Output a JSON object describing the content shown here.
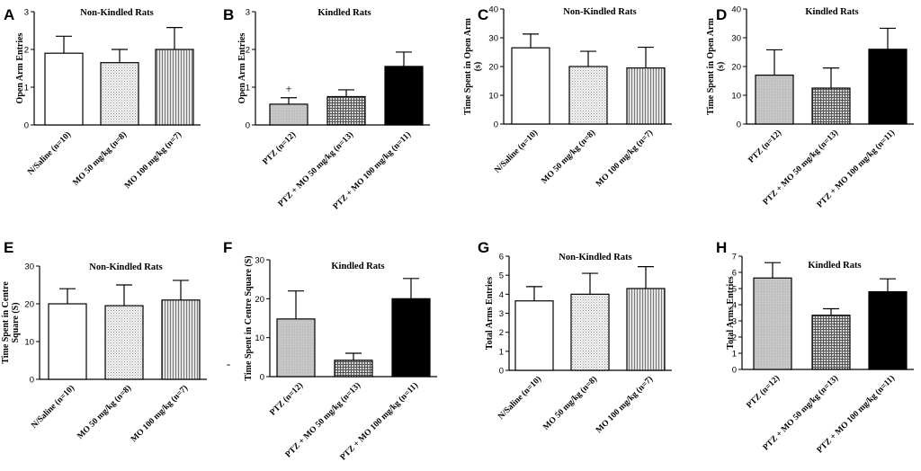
{
  "chart_data": [
    {
      "panel": "A",
      "type": "bar",
      "title": "Non-Kindled Rats",
      "ylabel": [
        "Open Arm Entries"
      ],
      "ylim": [
        0,
        3
      ],
      "yticks": [
        0,
        1,
        2,
        3
      ],
      "categories": [
        "N/Saline (n=10)",
        "MO 50 mg/kg (n=8)",
        "MO 100 mg/kg (n=7)"
      ],
      "values": [
        1.9,
        1.65,
        2.0
      ],
      "errors": [
        0.45,
        0.35,
        0.58
      ],
      "patterns": [
        "white",
        "dots",
        "vlines"
      ],
      "annotations": []
    },
    {
      "panel": "B",
      "type": "bar",
      "title": "Kindled Rats",
      "ylabel": [
        "Open Arm Entries"
      ],
      "ylim": [
        0,
        3
      ],
      "yticks": [
        0,
        1,
        2,
        3
      ],
      "categories": [
        "PTZ (n=12)",
        "PTZ + MO 50 mg/kg (n=13)",
        "PTZ + MO 100 mg/kg (n=11)"
      ],
      "values": [
        0.55,
        0.75,
        1.55
      ],
      "errors": [
        0.17,
        0.18,
        0.38
      ],
      "patterns": [
        "gray",
        "grid",
        "black"
      ],
      "annotations": [
        {
          "text": "+",
          "bar": 0
        }
      ]
    },
    {
      "panel": "C",
      "type": "bar",
      "title": "Non-Kindled Rats",
      "ylabel": [
        "Time Spent in Open Arm",
        "(s)"
      ],
      "ylim": [
        0,
        40
      ],
      "yticks": [
        0,
        10,
        20,
        30,
        40
      ],
      "categories": [
        "N/Saline (n=10)",
        "MO 50 mg/kg (n=8)",
        "MO 100 mg/kg (n=7)"
      ],
      "values": [
        26.5,
        20.0,
        19.5
      ],
      "errors": [
        4.8,
        5.3,
        7.2
      ],
      "patterns": [
        "white",
        "dots",
        "vlines"
      ],
      "annotations": []
    },
    {
      "panel": "D",
      "type": "bar",
      "title": "Kindled Rats",
      "ylabel": [
        "Time Spent in Open Arm",
        "(s)"
      ],
      "ylim": [
        0,
        40
      ],
      "yticks": [
        0,
        10,
        20,
        30,
        40
      ],
      "categories": [
        "PTZ (n=12)",
        "PTZ + MO 50 mg/kg (n=13)",
        "PTZ + MO 100 mg/kg (n=11)"
      ],
      "values": [
        17.0,
        12.5,
        26.0
      ],
      "errors": [
        8.8,
        7.0,
        7.3
      ],
      "patterns": [
        "gray",
        "grid",
        "black"
      ],
      "annotations": []
    },
    {
      "panel": "E",
      "type": "bar",
      "title": "Non-Kindled Rats",
      "ylabel": [
        "Time Spent in Centre",
        "Square (S)"
      ],
      "ylim": [
        0,
        30
      ],
      "yticks": [
        0,
        10,
        20,
        30
      ],
      "categories": [
        "N/Saline (n=10)",
        "MO 50 mg/kg (n=8)",
        "MO 100 mg/kg (n=7)"
      ],
      "values": [
        20.0,
        19.5,
        21.0
      ],
      "errors": [
        4.0,
        5.5,
        5.2
      ],
      "patterns": [
        "white",
        "dots",
        "vlines"
      ],
      "annotations": []
    },
    {
      "panel": "F",
      "type": "bar",
      "title": "Kindled Rats",
      "ylabel": [
        "Time Spent in Centre Square (S)"
      ],
      "ylim": [
        0,
        30
      ],
      "yticks": [
        0,
        10,
        20,
        30
      ],
      "categories": [
        "PTZ (n=12)",
        "PTZ + MO 50 mg/kg (n=13)",
        "PTZ + MO 100 mg/kg (n=11)"
      ],
      "values": [
        14.8,
        4.2,
        20.0
      ],
      "errors": [
        7.2,
        1.8,
        5.2
      ],
      "patterns": [
        "gray",
        "grid",
        "black"
      ],
      "annotations": [
        {
          "text": "-",
          "bar": -1
        }
      ]
    },
    {
      "panel": "G",
      "type": "bar",
      "title": "Non-Kindled Rats",
      "ylabel": [
        "Total Arms Entries"
      ],
      "ylim": [
        0,
        6
      ],
      "yticks": [
        0,
        1,
        2,
        3,
        4,
        5,
        6
      ],
      "categories": [
        "N/Saline (n=10)",
        "MO 50 mg/kg (n=8)",
        "MO 100 mg/kg (n=7)"
      ],
      "values": [
        3.65,
        4.0,
        4.3
      ],
      "errors": [
        0.75,
        1.1,
        1.15
      ],
      "patterns": [
        "white",
        "dots",
        "vlines"
      ],
      "annotations": []
    },
    {
      "panel": "H",
      "type": "bar",
      "title": "Kindled Rats",
      "ylabel": [
        "Total Arms Entries"
      ],
      "ylim": [
        0,
        7
      ],
      "yticks": [
        0,
        1,
        2,
        3,
        4,
        5,
        6,
        7
      ],
      "categories": [
        "PTZ (n=12)",
        "PTZ + MO 50 mg/kg (n=13)",
        "PTZ + MO 100 mg/kg (n=11)"
      ],
      "values": [
        5.65,
        3.35,
        4.8
      ],
      "errors": [
        0.95,
        0.4,
        0.8
      ],
      "patterns": [
        "gray",
        "grid",
        "black"
      ],
      "annotations": []
    }
  ],
  "colors": {
    "axis": "#000000",
    "bar_edge": "#000000",
    "gray_fill": "#c8c8c8",
    "black_fill": "#000000"
  }
}
